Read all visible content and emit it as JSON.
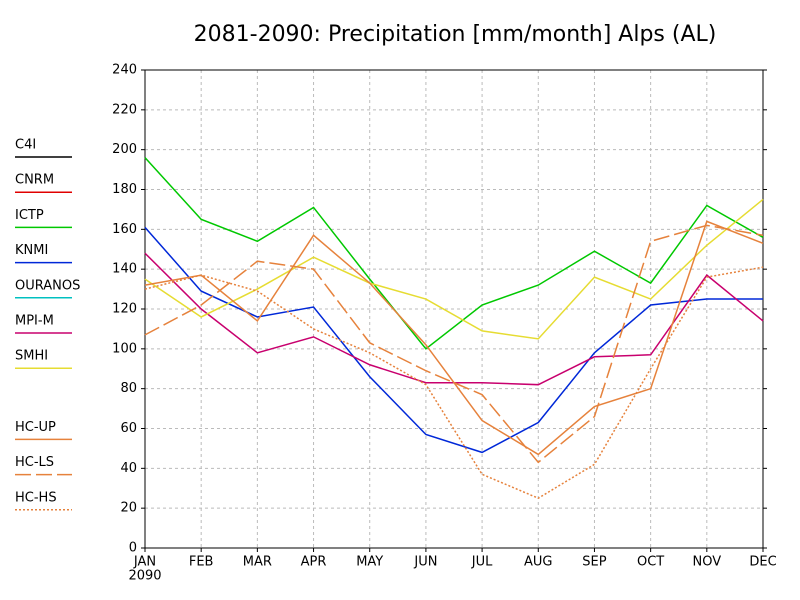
{
  "chart_data": {
    "type": "line",
    "title": "2081-2090: Precipitation [mm/month] Alps (AL)",
    "categories": [
      "JAN",
      "FEB",
      "MAR",
      "APR",
      "MAY",
      "JUN",
      "JUL",
      "AUG",
      "SEP",
      "OCT",
      "NOV",
      "DEC"
    ],
    "year_label": "2090",
    "ylim": [
      0,
      240
    ],
    "yticks": [
      0,
      20,
      40,
      60,
      80,
      100,
      120,
      140,
      160,
      180,
      200,
      220,
      240
    ],
    "grid": true,
    "legend": "left",
    "series": [
      {
        "name": "C4I",
        "color": "#000000",
        "dash": "solid",
        "values": [
          null,
          null,
          null,
          null,
          null,
          null,
          null,
          null,
          null,
          null,
          null,
          null
        ]
      },
      {
        "name": "CNRM",
        "color": "#e00000",
        "dash": "solid",
        "values": [
          null,
          null,
          null,
          null,
          null,
          null,
          null,
          null,
          null,
          null,
          null,
          null
        ]
      },
      {
        "name": "ICTP",
        "color": "#00c800",
        "dash": "solid",
        "values": [
          196,
          165,
          154,
          171,
          135,
          100,
          122,
          132,
          149,
          133,
          172,
          156
        ]
      },
      {
        "name": "KNMI",
        "color": "#0028d8",
        "dash": "solid",
        "values": [
          161,
          129,
          116,
          121,
          86,
          57,
          48,
          63,
          98,
          122,
          125,
          125
        ]
      },
      {
        "name": "OURANOS",
        "color": "#00c0c0",
        "dash": "solid",
        "values": [
          null,
          null,
          null,
          null,
          null,
          null,
          null,
          null,
          null,
          null,
          null,
          null
        ]
      },
      {
        "name": "MPI-M",
        "color": "#c8006e",
        "dash": "solid",
        "values": [
          148,
          120,
          98,
          106,
          92,
          83,
          83,
          82,
          96,
          97,
          137,
          114
        ]
      },
      {
        "name": "SMHI",
        "color": "#e6dc32",
        "dash": "solid",
        "values": [
          135,
          116,
          130,
          146,
          133,
          125,
          109,
          105,
          136,
          125,
          152,
          175
        ]
      },
      {
        "name": "HC-UP",
        "color": "#e6823c",
        "dash": "solid",
        "values": [
          132,
          137,
          114,
          157,
          133,
          102,
          64,
          47,
          71,
          80,
          164,
          153
        ]
      },
      {
        "name": "HC-LS",
        "color": "#e6823c",
        "dash": "dashed",
        "values": [
          107,
          122,
          144,
          140,
          103,
          89,
          77,
          43,
          66,
          154,
          162,
          157
        ]
      },
      {
        "name": "HC-HS",
        "color": "#e6823c",
        "dash": "dotted",
        "values": [
          130,
          137,
          129,
          110,
          98,
          82,
          37,
          25,
          42,
          90,
          136,
          141
        ]
      }
    ]
  }
}
